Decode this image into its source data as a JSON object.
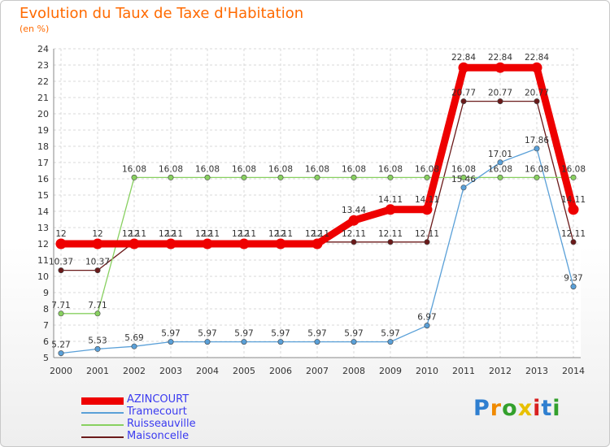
{
  "title": "Evolution du Taux de Taxe d'Habitation",
  "subtitle": "(en %)",
  "logo": {
    "letters": [
      "P",
      "r",
      "o",
      "x",
      "i",
      "t",
      "i"
    ]
  },
  "chart_data": {
    "type": "line",
    "title": "Evolution du Taux de Taxe d'Habitation",
    "ylabel": "(en %)",
    "xlabel": "",
    "x": [
      2000,
      2001,
      2002,
      2003,
      2004,
      2005,
      2006,
      2007,
      2008,
      2009,
      2010,
      2011,
      2012,
      2013,
      2014
    ],
    "ylim": [
      5,
      24
    ],
    "yticks": [
      5,
      6,
      7,
      8,
      9,
      10,
      11,
      12,
      13,
      14,
      15,
      16,
      17,
      18,
      19,
      20,
      21,
      22,
      23,
      24
    ],
    "grid": true,
    "legend_position": "bottom-left",
    "series": [
      {
        "name": "Maisoncelle",
        "color": "#6b1a1a",
        "width": 1.3,
        "values": [
          10.37,
          10.37,
          12.11,
          12.11,
          12.11,
          12.11,
          12.11,
          12.11,
          12.11,
          12.11,
          12.11,
          20.77,
          20.77,
          20.77,
          12.11
        ],
        "labels": [
          "10.37",
          "10.37",
          "12.11",
          "12.11",
          "12.11",
          "12.11",
          "12.11",
          "12.11",
          "12.11",
          "12.11",
          "12.11",
          "20.77",
          "20.77",
          "20.77",
          "12.11"
        ]
      },
      {
        "name": "Ruisseauville",
        "color": "#88d060",
        "width": 1.3,
        "values": [
          7.71,
          7.71,
          16.08,
          16.08,
          16.08,
          16.08,
          16.08,
          16.08,
          16.08,
          16.08,
          16.08,
          16.08,
          16.08,
          16.08,
          16.08
        ],
        "labels": [
          "7.71",
          "7.71",
          "16.08",
          "16.08",
          "16.08",
          "16.08",
          "16.08",
          "16.08",
          "16.08",
          "16.08",
          "16.08",
          "16.08",
          "16.08",
          "16.08",
          "16.08"
        ]
      },
      {
        "name": "Tramecourt",
        "color": "#5aa0d8",
        "width": 1.3,
        "values": [
          5.27,
          5.53,
          5.69,
          5.97,
          5.97,
          5.97,
          5.97,
          5.97,
          5.97,
          5.97,
          6.97,
          15.46,
          17.01,
          17.86,
          9.37
        ],
        "labels": [
          "5.27",
          "5.53",
          "5.69",
          "5.97",
          "5.97",
          "5.97",
          "5.97",
          "5.97",
          "5.97",
          "5.97",
          "6.97",
          "15.46",
          "17.01",
          "17.86",
          "9.37"
        ]
      },
      {
        "name": "AZINCOURT",
        "color": "#ee0000",
        "width": 9,
        "values": [
          12,
          12,
          12,
          12,
          12,
          12,
          12,
          12,
          13.44,
          14.11,
          14.11,
          22.84,
          22.84,
          22.84,
          14.11
        ],
        "labels": [
          "12",
          "12",
          "12",
          "12",
          "12",
          "12",
          "12",
          "12",
          "13.44",
          "14.11",
          "14.11",
          "22.84",
          "22.84",
          "22.84",
          "14.11"
        ]
      }
    ],
    "legend": [
      {
        "name": "AZINCOURT",
        "color": "#ee0000",
        "width": 9
      },
      {
        "name": "Tramecourt",
        "color": "#5aa0d8",
        "width": 1.5
      },
      {
        "name": "Ruisseauville",
        "color": "#88d060",
        "width": 1.5
      },
      {
        "name": "Maisoncelle",
        "color": "#6b1a1a",
        "width": 1.5
      }
    ]
  }
}
